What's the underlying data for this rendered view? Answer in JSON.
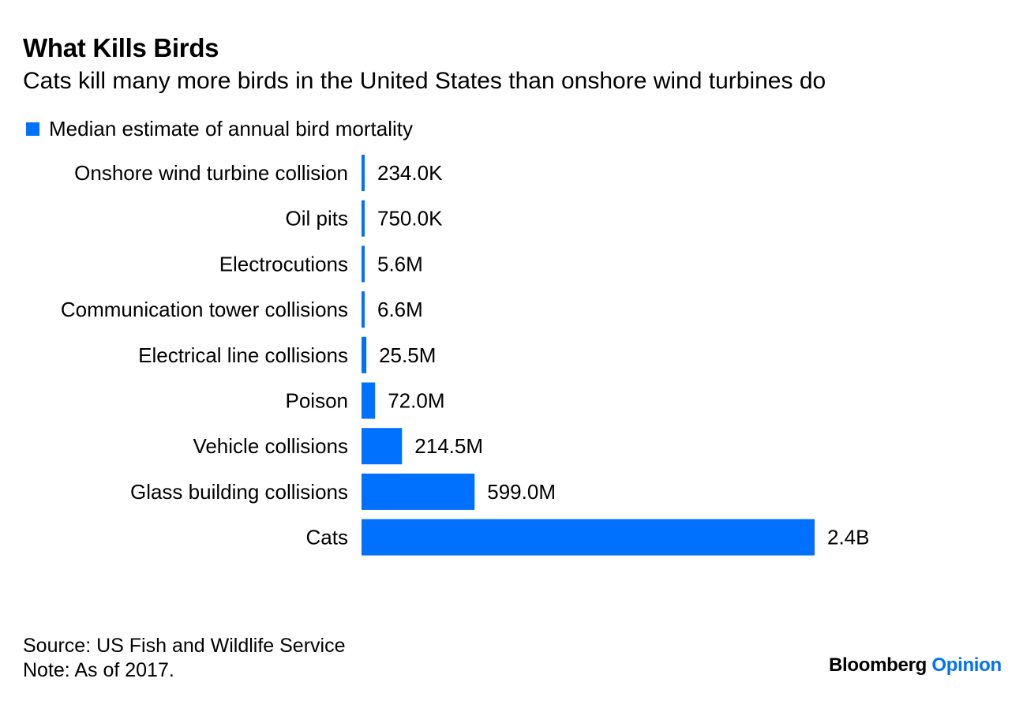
{
  "chart_data": {
    "type": "bar",
    "orientation": "horizontal",
    "title": "What Kills Birds",
    "subtitle": "Cats kill many more birds in the United States than onshore wind turbines do",
    "legend": [
      {
        "name": "Median estimate of annual bird mortality",
        "color": "#0070ff"
      }
    ],
    "legend_position": "top-left",
    "categories": [
      "Onshore wind turbine collision",
      "Oil pits",
      "Electrocutions",
      "Communication tower collisions",
      "Electrical line collisions",
      "Poison",
      "Vehicle collisions",
      "Glass building collisions",
      "Cats"
    ],
    "values": [
      234000,
      750000,
      5600000,
      6600000,
      25500000,
      72000000,
      214500000,
      599000000,
      2400000000
    ],
    "data_labels": [
      "234.0K",
      "750.0K",
      "5.6M",
      "6.6M",
      "25.5M",
      "72.0M",
      "214.5M",
      "599.0M",
      "2.4B"
    ],
    "xlim": [
      0,
      2400000000
    ],
    "grid": false,
    "bar_color": "#0070ff"
  },
  "footer": {
    "source": "Source: US Fish and Wildlife Service",
    "note": "Note: As of 2017.",
    "logo_brand": "Bloomberg",
    "logo_section": "Opinion",
    "logo_section_color": "#0070ff"
  }
}
